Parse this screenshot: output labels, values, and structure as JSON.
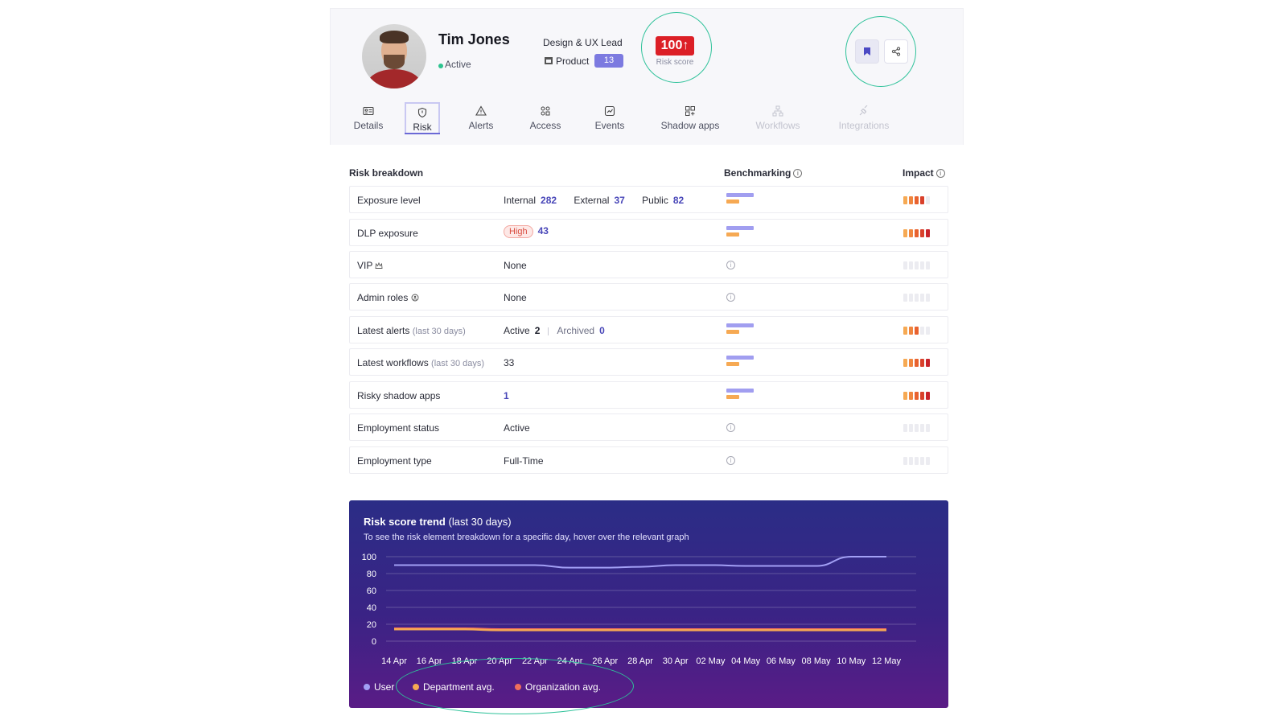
{
  "profile": {
    "name": "Tim Jones",
    "status": "Active",
    "job_title": "Design & UX Lead",
    "department": "Product",
    "department_count": "13",
    "risk_score": "100↑",
    "risk_score_label": "Risk score"
  },
  "tabs": [
    {
      "label": "Details",
      "icon": "id-card-icon"
    },
    {
      "label": "Risk",
      "icon": "shield-icon"
    },
    {
      "label": "Alerts",
      "icon": "warning-icon"
    },
    {
      "label": "Access",
      "icon": "access-icon"
    },
    {
      "label": "Events",
      "icon": "chart-icon"
    },
    {
      "label": "Shadow apps",
      "icon": "apps-grid-icon"
    },
    {
      "label": "Workflows",
      "icon": "workflow-icon"
    },
    {
      "label": "Integrations",
      "icon": "plug-icon"
    }
  ],
  "breakdown": {
    "title": "Risk breakdown",
    "benchmarking_label": "Benchmarking",
    "impact_label": "Impact",
    "rows": {
      "exposure": {
        "label": "Exposure level",
        "internal_label": "Internal",
        "internal": "282",
        "external_label": "External",
        "external": "37",
        "public_label": "Public",
        "public": "82",
        "impact": 4
      },
      "dlp": {
        "label": "DLP exposure",
        "level": "High",
        "count": "43",
        "impact": 5
      },
      "vip": {
        "label": "VIP",
        "value": "None",
        "impact": 0
      },
      "admin": {
        "label": "Admin roles",
        "value": "None",
        "impact": 0
      },
      "alerts": {
        "label": "Latest alerts",
        "sub": "(last 30 days)",
        "active_label": "Active",
        "active": "2",
        "archived_label": "Archived",
        "archived": "0",
        "impact": 3
      },
      "workflows": {
        "label": "Latest workflows",
        "sub": "(last 30 days)",
        "value": "33",
        "impact": 5
      },
      "shadow": {
        "label": "Risky shadow apps",
        "value": "1",
        "impact": 5
      },
      "employment_status": {
        "label": "Employment status",
        "value": "Active",
        "impact": 0
      },
      "employment_type": {
        "label": "Employment type",
        "value": "Full-Time",
        "impact": 0
      }
    },
    "impact_colors": [
      "#f6a953",
      "#f0853e",
      "#e8622f",
      "#d9402a",
      "#c8232a"
    ]
  },
  "chart_data": {
    "type": "line",
    "title": "Risk score trend",
    "title_suffix": "(last 30 days)",
    "subtitle": "To see the risk element breakdown for a specific day, hover over the relevant graph",
    "ylim": [
      0,
      100
    ],
    "y_ticks": [
      "100",
      "80",
      "60",
      "40",
      "20",
      "0"
    ],
    "x_ticks": [
      "14 Apr",
      "16 Apr",
      "18 Apr",
      "20 Apr",
      "22 Apr",
      "24 Apr",
      "26 Apr",
      "28 Apr",
      "30 Apr",
      "02 May",
      "04 May",
      "06 May",
      "08 May",
      "10 May",
      "12 May"
    ],
    "x": [
      "14 Apr",
      "16 Apr",
      "18 Apr",
      "20 Apr",
      "22 Apr",
      "24 Apr",
      "26 Apr",
      "28 Apr",
      "30 Apr",
      "02 May",
      "04 May",
      "06 May",
      "08 May",
      "10 May",
      "12 May"
    ],
    "series": [
      {
        "name": "User",
        "color": "#a29ff5",
        "values": [
          90,
          90,
          90,
          90,
          90,
          87,
          87,
          88,
          90,
          90,
          89,
          89,
          89,
          100,
          100
        ]
      },
      {
        "name": "Department avg.",
        "color": "#f6a953",
        "values": [
          14,
          14,
          14,
          13,
          13,
          13,
          13,
          13,
          13,
          13,
          13,
          13,
          13,
          13,
          13
        ]
      },
      {
        "name": "Organization avg.",
        "color": "#ef6f5c",
        "values": [
          15,
          15,
          15,
          14,
          14,
          14,
          14,
          14,
          14,
          14,
          14,
          14,
          14,
          14,
          14
        ]
      }
    ],
    "grid": true,
    "legend": "bottom-left"
  }
}
